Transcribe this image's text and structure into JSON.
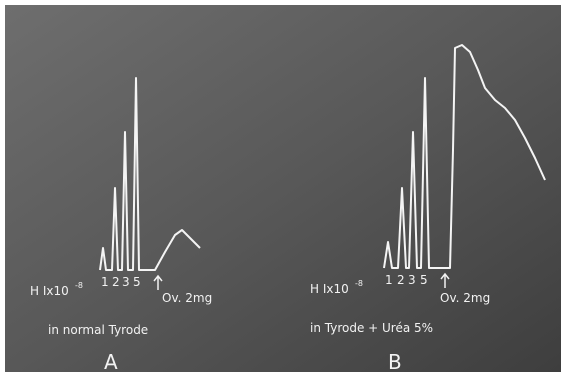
{
  "panels": [
    {
      "letter": "A",
      "drug": "H Ix10",
      "exponent": "-8",
      "doses": [
        "1",
        "2",
        "3",
        "5"
      ],
      "annotation": "Ov. 2mg",
      "caption": "in normal Tyrode"
    },
    {
      "letter": "B",
      "drug": "H Ix10",
      "exponent": "-8",
      "doses": [
        "1",
        "2",
        "3",
        "5"
      ],
      "annotation": "Ov. 2mg",
      "caption": "in Tyrode + Uréa 5%"
    }
  ]
}
